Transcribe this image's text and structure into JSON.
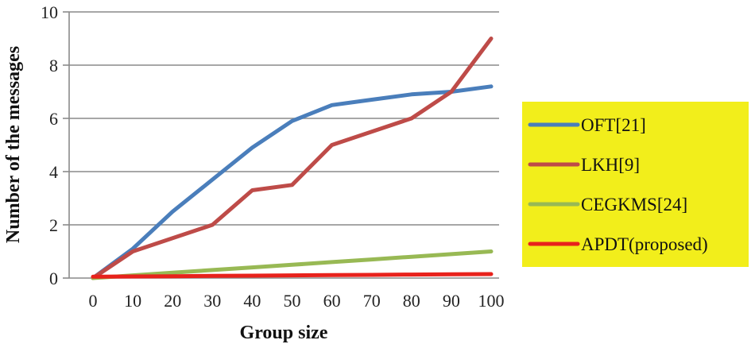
{
  "chart_data": {
    "type": "line",
    "xlabel": "Group size",
    "ylabel": "Number of the messages",
    "x": [
      0,
      10,
      20,
      30,
      40,
      50,
      60,
      70,
      80,
      90,
      100
    ],
    "ylim": [
      0,
      10
    ],
    "yticks": [
      "0",
      "2",
      "4",
      "6",
      "8",
      "10"
    ],
    "grid": true,
    "legend_position": "right",
    "legend_background": "#f2ee1b",
    "series": [
      {
        "name": "OFT[21]",
        "color": "#4a7ebb",
        "values": [
          0,
          1.1,
          2.5,
          3.7,
          4.9,
          5.9,
          6.5,
          6.7,
          6.9,
          7.0,
          7.2
        ]
      },
      {
        "name": "LKH[9]",
        "color": "#be4b48",
        "values": [
          0,
          1.0,
          1.5,
          2.0,
          3.3,
          3.5,
          5.0,
          5.5,
          6.0,
          7.0,
          9.0
        ]
      },
      {
        "name": "CEGKMS[24]",
        "color": "#98b954",
        "values": [
          0,
          0.1,
          0.2,
          0.3,
          0.4,
          0.5,
          0.6,
          0.7,
          0.8,
          0.9,
          1.0
        ]
      },
      {
        "name": "APDT(proposed)",
        "color": "#e8221c",
        "values": [
          0.05,
          0.06,
          0.07,
          0.08,
          0.09,
          0.1,
          0.11,
          0.12,
          0.13,
          0.14,
          0.15
        ]
      }
    ]
  }
}
